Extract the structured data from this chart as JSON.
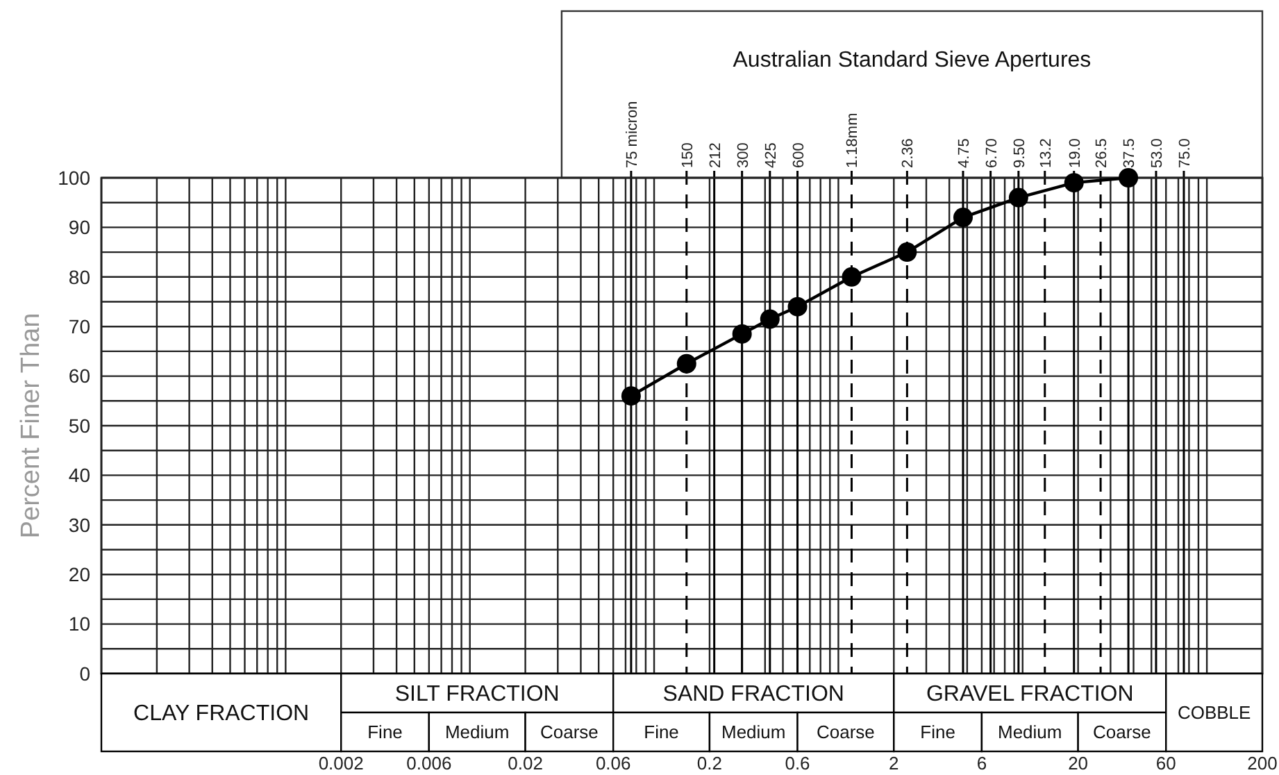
{
  "chart_data": {
    "type": "line",
    "title": "Australian Standard Sieve Apertures",
    "ylabel": "Percent Finer Than",
    "x": [
      0.075,
      0.15,
      0.3,
      0.425,
      0.6,
      1.18,
      2.36,
      4.75,
      9.5,
      19,
      37.5
    ],
    "series": [
      {
        "color": "#000000",
        "values": [
          56,
          62.5,
          68.5,
          71.5,
          74,
          80,
          85,
          92,
          96,
          99,
          100
        ]
      }
    ],
    "log": "x",
    "marker": "circle",
    "line_style": "solid",
    "grid": true,
    "xlim": [
      0.0001,
      200
    ],
    "xticks": [
      0.002,
      0.006,
      0.02,
      0.06,
      0.2,
      0.6,
      2,
      6,
      20,
      60,
      200
    ],
    "ylim": [
      0,
      100
    ],
    "yticks": [
      0,
      {
        "value": 5,
        "label": null
      },
      10,
      {
        "value": 15,
        "label": null
      },
      20,
      {
        "value": 25,
        "label": null
      },
      30,
      {
        "value": 35,
        "label": null
      },
      40,
      {
        "value": 45,
        "label": null
      },
      50,
      {
        "value": 55,
        "label": null
      },
      60,
      {
        "value": 65,
        "label": null
      },
      70,
      {
        "value": 75,
        "label": null
      },
      80,
      {
        "value": 85,
        "label": null
      },
      90,
      {
        "value": 95,
        "label": null
      },
      100
    ],
    "ref_lines": [
      {
        "axis": "x",
        "value": 0.075,
        "label": "75 micron",
        "line_style": "solid"
      },
      {
        "axis": "x",
        "value": 0.15,
        "label": "150",
        "line_style": "dashed"
      },
      {
        "axis": "x",
        "value": 0.212,
        "label": "212",
        "line_style": "solid"
      },
      {
        "axis": "x",
        "value": 0.3,
        "label": "300",
        "line_style": "solid"
      },
      {
        "axis": "x",
        "value": 0.425,
        "label": "425",
        "line_style": "solid"
      },
      {
        "axis": "x",
        "value": 0.6,
        "label": "600",
        "line_style": "solid"
      },
      {
        "axis": "x",
        "value": 1.18,
        "label": "1.18mm",
        "line_style": "dashed"
      },
      {
        "axis": "x",
        "value": 2.36,
        "label": "2.36",
        "line_style": "dashed"
      },
      {
        "axis": "x",
        "value": 4.75,
        "label": "4.75",
        "line_style": "solid"
      },
      {
        "axis": "x",
        "value": 6.7,
        "label": "6.70",
        "line_style": "solid"
      },
      {
        "axis": "x",
        "value": 9.5,
        "label": "9.50",
        "line_style": "solid"
      },
      {
        "axis": "x",
        "value": 13.2,
        "label": "13.2",
        "line_style": "dashed"
      },
      {
        "axis": "x",
        "value": 19,
        "label": "19.0",
        "line_style": "solid"
      },
      {
        "axis": "x",
        "value": 26.5,
        "label": "26.5",
        "line_style": "dashed"
      },
      {
        "axis": "x",
        "value": 37.5,
        "label": "37.5",
        "line_style": "solid"
      },
      {
        "axis": "x",
        "value": 53,
        "label": "53.0",
        "line_style": "solid"
      },
      {
        "axis": "x",
        "value": 75,
        "label": "75.0",
        "line_style": "solid"
      }
    ],
    "annotations": [
      "CLAY FRACTION",
      "SILT FRACTION",
      "Fine",
      "Medium",
      "Coarse",
      "SAND FRACTION",
      "Fine",
      "Medium",
      "Coarse",
      "GRAVEL FRACTION",
      "Fine",
      "Medium",
      "Coarse",
      "COBBLE"
    ]
  }
}
